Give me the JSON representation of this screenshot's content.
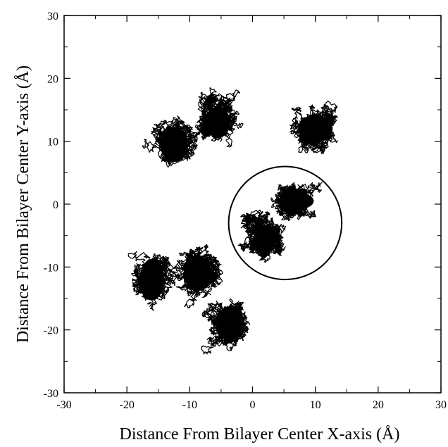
{
  "chart_data": {
    "type": "scatter",
    "title": "",
    "xlabel": "Distance From Bilayer Center X-axis (Å)",
    "ylabel": "Distance From Bilayer Center Y-axis (Å)",
    "xlim": [
      -30,
      30
    ],
    "ylim": [
      -30,
      30
    ],
    "x_ticks": [
      -30,
      -20,
      -10,
      0,
      10,
      20,
      30
    ],
    "y_ticks": [
      -30,
      -20,
      -10,
      0,
      10,
      20,
      30
    ],
    "x_tick_labels": [
      "-30",
      "-20",
      "-10",
      "0",
      "10",
      "20",
      "30"
    ],
    "y_tick_labels": [
      "-30",
      "-20",
      "-10",
      "0",
      "10",
      "20",
      "30"
    ],
    "grid": false,
    "legend": "none",
    "point_color": "#000000",
    "clusters": [
      {
        "center": [
          -12.5,
          9.5
        ],
        "extent": [
          4.0,
          5.0
        ]
      },
      {
        "center": [
          -5.5,
          13.0
        ],
        "extent": [
          3.5,
          4.5
        ]
      },
      {
        "center": [
          10.0,
          12.0
        ],
        "extent": [
          5.0,
          4.0
        ]
      },
      {
        "center": [
          7.0,
          0.5
        ],
        "extent": [
          5.0,
          2.5
        ]
      },
      {
        "center": [
          2.0,
          -5.5
        ],
        "extent": [
          3.0,
          4.0
        ]
      },
      {
        "center": [
          -16.0,
          -12.0
        ],
        "extent": [
          3.5,
          6.0
        ]
      },
      {
        "center": [
          -8.5,
          -11.0
        ],
        "extent": [
          3.5,
          5.0
        ]
      },
      {
        "center": [
          -3.5,
          -19.0
        ],
        "extent": [
          4.0,
          5.0
        ]
      }
    ],
    "annotations": [
      {
        "type": "circle",
        "center": [
          5.2,
          -3.0
        ],
        "radius": 9.0
      }
    ]
  }
}
